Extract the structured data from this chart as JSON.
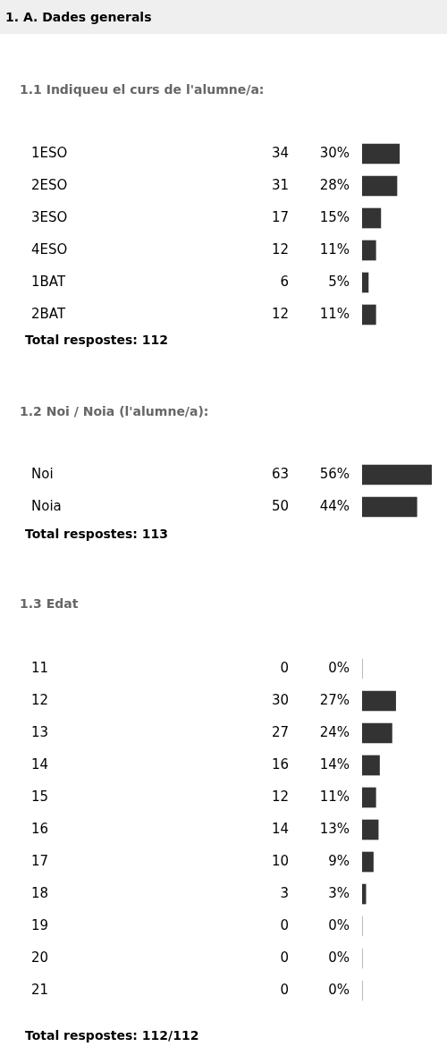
{
  "chart_data": [
    {
      "type": "bar",
      "orientation": "horizontal",
      "title": "1. A. Dades generals",
      "subtitle": "1.1 Indiqueu el curs de l'alumne/a:",
      "categories": [
        "1ESO",
        "2ESO",
        "3ESO",
        "4ESO",
        "1BAT",
        "2BAT"
      ],
      "values": [
        30,
        28,
        15,
        11,
        5,
        11
      ],
      "value_labels": [
        "30%",
        "28%",
        "15%",
        "11%",
        "5%",
        "11%"
      ],
      "color": "#333333",
      "annotations": [
        "34",
        "31",
        "17",
        "12",
        "6",
        "12",
        "Total respostes: 112"
      ]
    },
    {
      "type": "bar",
      "orientation": "horizontal",
      "title": "1.2 Noi / Noia (l'alumne/a):",
      "categories": [
        "Noi",
        "Noia"
      ],
      "values": [
        56,
        44
      ],
      "value_labels": [
        "56%",
        "44%"
      ],
      "color": "#333333",
      "annotations": [
        "63",
        "50",
        "Total respostes: 113"
      ]
    },
    {
      "type": "bar",
      "orientation": "horizontal",
      "title": "1.3 Edat",
      "categories": [
        "11",
        "12",
        "13",
        "14",
        "15",
        "16",
        "17",
        "18",
        "19",
        "20",
        "21"
      ],
      "values": [
        0,
        27,
        24,
        14,
        11,
        13,
        9,
        3,
        0,
        0,
        0
      ],
      "value_labels": [
        "0%",
        "27%",
        "24%",
        "14%",
        "11%",
        "13%",
        "9%",
        "3%",
        "0%",
        "0%",
        "0%"
      ],
      "color": "#333333",
      "annotations": [
        "0",
        "30",
        "27",
        "16",
        "12",
        "14",
        "10",
        "3",
        "0",
        "0",
        "0",
        "Total respostes: 112/112"
      ]
    }
  ]
}
